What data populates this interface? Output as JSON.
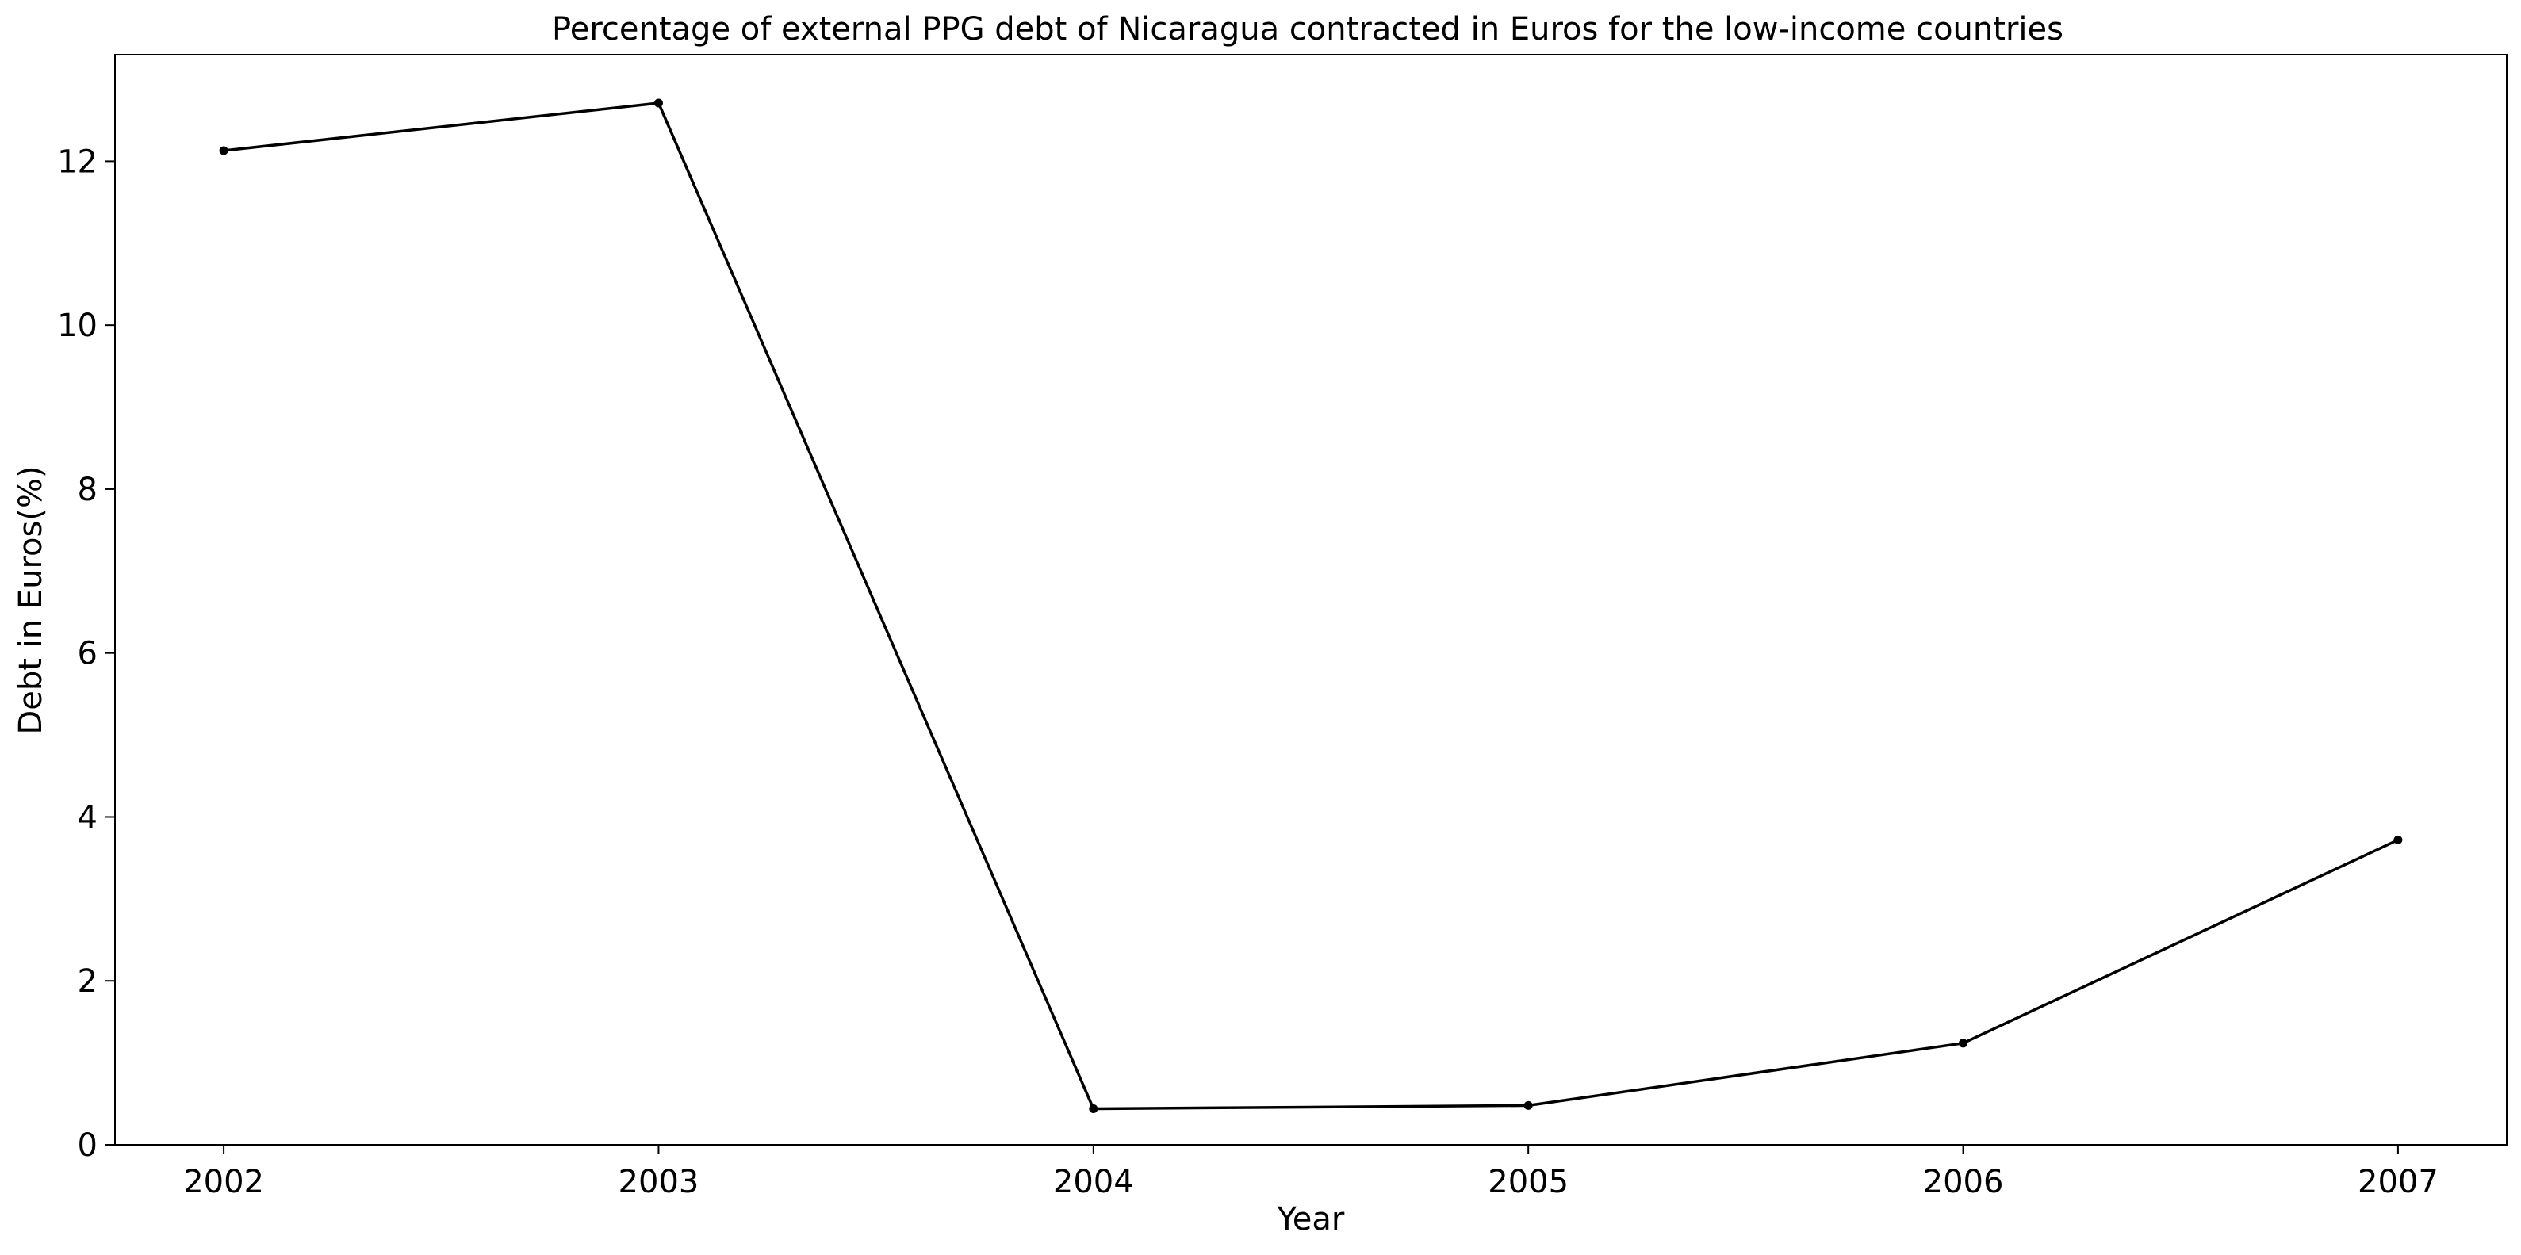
{
  "chart_data": {
    "type": "line",
    "title": "Percentage of external PPG debt of Nicaragua contracted in Euros for the low-income countries",
    "xlabel": "Year",
    "ylabel": "Debt in Euros(%)",
    "categories": [
      "2002",
      "2003",
      "2004",
      "2005",
      "2006",
      "2007"
    ],
    "series": [
      {
        "name": "Debt in Euros(%)",
        "values": [
          12.13,
          12.71,
          0.44,
          0.48,
          1.24,
          3.72
        ],
        "color": "#000000"
      }
    ],
    "x_range": [
      -0.25,
      5.25
    ],
    "ylim": [
      0,
      13.3
    ],
    "yticks": [
      0,
      2,
      4,
      6,
      8,
      10,
      12
    ],
    "grid": false,
    "legend": false
  }
}
